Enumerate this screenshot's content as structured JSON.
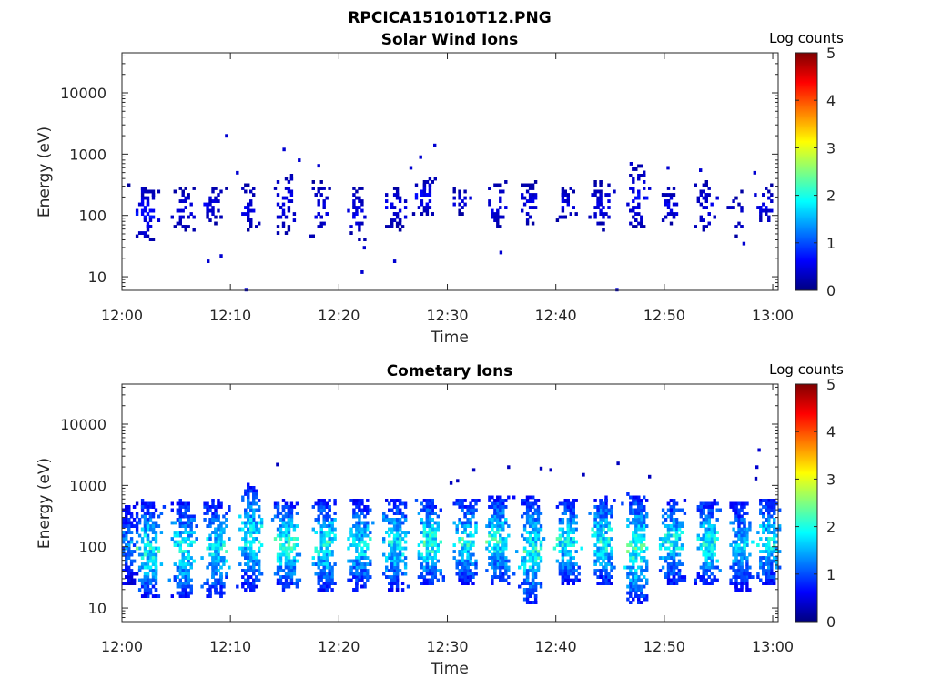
{
  "figure": {
    "title": "RPCICA151010T12.PNG"
  },
  "chart_data": [
    {
      "type": "heatmap",
      "title": "Solar Wind Ions",
      "xlabel": "Time",
      "ylabel": "Energy (eV)",
      "x_ticks": [
        "12:00",
        "12:10",
        "12:20",
        "12:30",
        "12:40",
        "12:50",
        "13:00"
      ],
      "y_ticks": [
        "10",
        "100",
        "1000",
        "10000"
      ],
      "y_scale": "log",
      "ylim": [
        6,
        45000
      ],
      "xlim_minutes": [
        0,
        60.5
      ],
      "colorbar": {
        "label": "Log counts",
        "min": 0,
        "max": 5,
        "ticks": [
          "0",
          "1",
          "2",
          "3",
          "4",
          "5"
        ]
      },
      "bursts": [
        {
          "t": 0.0,
          "n": 2,
          "lo": 200,
          "hi": 350,
          "amp": 0.3
        },
        {
          "t": 2.2,
          "n": 60,
          "lo": 40,
          "hi": 300,
          "amp": 0.8
        },
        {
          "t": 5.6,
          "n": 35,
          "lo": 60,
          "hi": 280,
          "amp": 0.6
        },
        {
          "t": 8.3,
          "n": 30,
          "lo": 70,
          "hi": 280,
          "amp": 0.6
        },
        {
          "t": 11.7,
          "n": 32,
          "lo": 60,
          "hi": 320,
          "amp": 0.6
        },
        {
          "t": 14.8,
          "n": 38,
          "lo": 50,
          "hi": 550,
          "amp": 0.6
        },
        {
          "t": 18.2,
          "n": 34,
          "lo": 40,
          "hi": 400,
          "amp": 0.6
        },
        {
          "t": 21.6,
          "n": 34,
          "lo": 40,
          "hi": 300,
          "amp": 0.6
        },
        {
          "t": 24.9,
          "n": 40,
          "lo": 60,
          "hi": 300,
          "amp": 0.6
        },
        {
          "t": 28.0,
          "n": 45,
          "lo": 100,
          "hi": 400,
          "amp": 0.7
        },
        {
          "t": 31.0,
          "n": 18,
          "lo": 100,
          "hi": 300,
          "amp": 0.5
        },
        {
          "t": 34.5,
          "n": 35,
          "lo": 60,
          "hi": 350,
          "amp": 0.6
        },
        {
          "t": 37.5,
          "n": 35,
          "lo": 70,
          "hi": 350,
          "amp": 0.6
        },
        {
          "t": 40.7,
          "n": 30,
          "lo": 80,
          "hi": 300,
          "amp": 0.6
        },
        {
          "t": 44.0,
          "n": 45,
          "lo": 60,
          "hi": 350,
          "amp": 0.6
        },
        {
          "t": 47.3,
          "n": 55,
          "lo": 60,
          "hi": 650,
          "amp": 0.7
        },
        {
          "t": 50.3,
          "n": 28,
          "lo": 70,
          "hi": 300,
          "amp": 0.6
        },
        {
          "t": 53.6,
          "n": 38,
          "lo": 50,
          "hi": 350,
          "amp": 0.6
        },
        {
          "t": 56.8,
          "n": 14,
          "lo": 40,
          "hi": 250,
          "amp": 0.5
        },
        {
          "t": 59.2,
          "n": 28,
          "lo": 70,
          "hi": 300,
          "amp": 0.6
        }
      ],
      "sparse_points": [
        {
          "t": 9.5,
          "e": 2000,
          "c": 0.4
        },
        {
          "t": 10.5,
          "e": 500,
          "c": 0.4
        },
        {
          "t": 14.8,
          "e": 1200,
          "c": 0.4
        },
        {
          "t": 16.2,
          "e": 800,
          "c": 0.4
        },
        {
          "t": 18.0,
          "e": 650,
          "c": 0.4
        },
        {
          "t": 26.5,
          "e": 600,
          "c": 0.4
        },
        {
          "t": 27.4,
          "e": 900,
          "c": 0.4
        },
        {
          "t": 28.7,
          "e": 1400,
          "c": 0.4
        },
        {
          "t": 46.8,
          "e": 700,
          "c": 0.4
        },
        {
          "t": 50.2,
          "e": 600,
          "c": 0.4
        },
        {
          "t": 53.2,
          "e": 550,
          "c": 0.4
        },
        {
          "t": 58.2,
          "e": 500,
          "c": 0.4
        },
        {
          "t": 7.8,
          "e": 18,
          "c": 0.4
        },
        {
          "t": 22.0,
          "e": 12,
          "c": 0.4
        },
        {
          "t": 22.2,
          "e": 30,
          "c": 0.4
        },
        {
          "t": 25.0,
          "e": 18,
          "c": 0.4
        },
        {
          "t": 9.0,
          "e": 22,
          "c": 0.4
        },
        {
          "t": 34.8,
          "e": 25,
          "c": 0.4
        },
        {
          "t": 57.2,
          "e": 35,
          "c": 0.4
        },
        {
          "t": 11.3,
          "e": 6.2,
          "c": 0.4
        },
        {
          "t": 45.5,
          "e": 6.2,
          "c": 0.4
        }
      ]
    },
    {
      "type": "heatmap",
      "title": "Cometary Ions",
      "xlabel": "Time",
      "ylabel": "Energy (eV)",
      "x_ticks": [
        "12:00",
        "12:10",
        "12:20",
        "12:30",
        "12:40",
        "12:50",
        "13:00"
      ],
      "y_ticks": [
        "10",
        "100",
        "1000",
        "10000"
      ],
      "y_scale": "log",
      "ylim": [
        6,
        45000
      ],
      "xlim_minutes": [
        0,
        60.5
      ],
      "colorbar": {
        "label": "Log counts",
        "min": 0,
        "max": 5,
        "ticks": [
          "0",
          "1",
          "2",
          "3",
          "4",
          "5"
        ]
      },
      "bursts": [
        {
          "t": 0.4,
          "n": 170,
          "lo": 25,
          "hi": 500,
          "amp": 1.5
        },
        {
          "t": 2.4,
          "n": 240,
          "lo": 15,
          "hi": 550,
          "amp": 2.3
        },
        {
          "t": 5.6,
          "n": 240,
          "lo": 15,
          "hi": 550,
          "amp": 2.2
        },
        {
          "t": 8.6,
          "n": 240,
          "lo": 15,
          "hi": 550,
          "amp": 2.1
        },
        {
          "t": 11.8,
          "n": 260,
          "lo": 20,
          "hi": 1000,
          "amp": 2.2
        },
        {
          "t": 15.1,
          "n": 250,
          "lo": 20,
          "hi": 600,
          "amp": 2.3
        },
        {
          "t": 18.6,
          "n": 250,
          "lo": 20,
          "hi": 600,
          "amp": 2.3
        },
        {
          "t": 21.8,
          "n": 240,
          "lo": 20,
          "hi": 600,
          "amp": 2.1
        },
        {
          "t": 25.1,
          "n": 250,
          "lo": 20,
          "hi": 600,
          "amp": 2.2
        },
        {
          "t": 28.2,
          "n": 260,
          "lo": 25,
          "hi": 600,
          "amp": 2.4
        },
        {
          "t": 31.6,
          "n": 240,
          "lo": 25,
          "hi": 600,
          "amp": 2.2
        },
        {
          "t": 34.6,
          "n": 260,
          "lo": 25,
          "hi": 650,
          "amp": 2.3
        },
        {
          "t": 37.6,
          "n": 260,
          "lo": 12,
          "hi": 650,
          "amp": 2.3
        },
        {
          "t": 41.0,
          "n": 250,
          "lo": 25,
          "hi": 600,
          "amp": 2.2
        },
        {
          "t": 44.2,
          "n": 260,
          "lo": 25,
          "hi": 650,
          "amp": 2.3
        },
        {
          "t": 47.4,
          "n": 280,
          "lo": 12,
          "hi": 700,
          "amp": 2.4
        },
        {
          "t": 50.7,
          "n": 250,
          "lo": 25,
          "hi": 600,
          "amp": 2.2
        },
        {
          "t": 53.9,
          "n": 250,
          "lo": 25,
          "hi": 550,
          "amp": 2.3
        },
        {
          "t": 56.9,
          "n": 220,
          "lo": 20,
          "hi": 550,
          "amp": 1.9
        },
        {
          "t": 59.5,
          "n": 240,
          "lo": 25,
          "hi": 600,
          "amp": 2.2
        }
      ],
      "sparse_points": [
        {
          "t": 14.2,
          "e": 2200,
          "c": 0.3
        },
        {
          "t": 32.3,
          "e": 1800,
          "c": 0.3
        },
        {
          "t": 35.5,
          "e": 2000,
          "c": 0.3
        },
        {
          "t": 38.5,
          "e": 1900,
          "c": 0.3
        },
        {
          "t": 39.4,
          "e": 1800,
          "c": 0.3
        },
        {
          "t": 42.4,
          "e": 1500,
          "c": 0.3
        },
        {
          "t": 45.6,
          "e": 2300,
          "c": 0.3
        },
        {
          "t": 48.5,
          "e": 1400,
          "c": 0.3
        },
        {
          "t": 58.6,
          "e": 3800,
          "c": 0.4
        },
        {
          "t": 58.4,
          "e": 2000,
          "c": 0.4
        },
        {
          "t": 58.3,
          "e": 1300,
          "c": 0.3
        },
        {
          "t": 30.2,
          "e": 1100,
          "c": 0.3
        },
        {
          "t": 30.8,
          "e": 1200,
          "c": 0.3
        }
      ]
    }
  ]
}
